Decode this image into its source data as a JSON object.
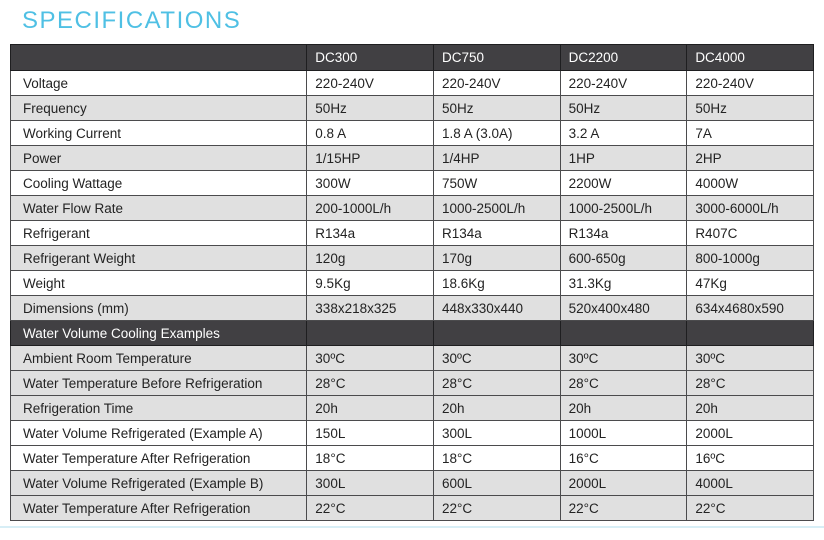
{
  "title": "SPECIFICATIONS",
  "colors": {
    "title": "#4fc0e4",
    "header_bg": "#414043",
    "header_text": "#ffffff",
    "row_shaded": "#e0e0e0",
    "row_plain": "#ffffff",
    "border": "#4b4b4d",
    "bottom_rule": "#d7eef6"
  },
  "table": {
    "columns": [
      "",
      "DC300",
      "DC750",
      "DC2200",
      "DC4000"
    ],
    "rows": [
      {
        "label": "Voltage",
        "values": [
          "220-240V",
          "220-240V",
          "220-240V",
          "220-240V"
        ],
        "shaded": false
      },
      {
        "label": "Frequency",
        "values": [
          "50Hz",
          "50Hz",
          "50Hz",
          "50Hz"
        ],
        "shaded": true
      },
      {
        "label": "Working Current",
        "values": [
          "0.8 A",
          "1.8 A (3.0A)",
          "3.2 A",
          "7A"
        ],
        "shaded": false
      },
      {
        "label": "Power",
        "values": [
          "1/15HP",
          "1/4HP",
          "1HP",
          "2HP"
        ],
        "shaded": true
      },
      {
        "label": "Cooling Wattage",
        "values": [
          "300W",
          "750W",
          "2200W",
          "4000W"
        ],
        "shaded": false
      },
      {
        "label": "Water Flow Rate",
        "values": [
          "200-1000L/h",
          "1000-2500L/h",
          "1000-2500L/h",
          "3000-6000L/h"
        ],
        "shaded": true
      },
      {
        "label": "Refrigerant",
        "values": [
          "R134a",
          "R134a",
          "R134a",
          "R407C"
        ],
        "shaded": false
      },
      {
        "label": "Refrigerant Weight",
        "values": [
          "120g",
          "170g",
          "600-650g",
          "800-1000g"
        ],
        "shaded": true
      },
      {
        "label": "Weight",
        "values": [
          "9.5Kg",
          "18.6Kg",
          "31.3Kg",
          "47Kg"
        ],
        "shaded": false
      },
      {
        "label": "Dimensions (mm)",
        "values": [
          "338x218x325",
          "448x330x440",
          "520x400x480",
          "634x4680x590"
        ],
        "shaded": true
      },
      {
        "type": "section",
        "label": "Water Volume Cooling Examples"
      },
      {
        "label": "Ambient Room Temperature",
        "values": [
          "30ºC",
          "30ºC",
          "30ºC",
          "30ºC"
        ],
        "shaded": true
      },
      {
        "label": "Water Temperature Before Refrigeration",
        "values": [
          "28°C",
          "28°C",
          "28°C",
          "28°C"
        ],
        "shaded": true
      },
      {
        "label": "Refrigeration Time",
        "values": [
          "20h",
          "20h",
          "20h",
          "20h"
        ],
        "shaded": true
      },
      {
        "label": "Water Volume Refrigerated (Example A)",
        "values": [
          "150L",
          "300L",
          "1000L",
          "2000L"
        ],
        "shaded": false
      },
      {
        "label": "Water Temperature After Refrigeration",
        "values": [
          "18°C",
          "18°C",
          "16°C",
          "16ºC"
        ],
        "shaded": false
      },
      {
        "label": "Water Volume Refrigerated (Example B)",
        "values": [
          "300L",
          "600L",
          "2000L",
          "4000L"
        ],
        "shaded": true
      },
      {
        "label": "Water Temperature After Refrigeration",
        "values": [
          "22°C",
          "22°C",
          "22°C",
          "22°C"
        ],
        "shaded": true
      }
    ]
  }
}
